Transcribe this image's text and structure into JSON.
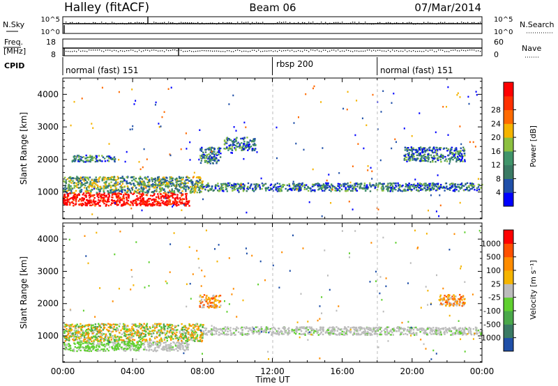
{
  "header": {
    "station": "Halley (fitACF)",
    "beam": "Beam 06",
    "date": "07/Mar/2014"
  },
  "chart_data": [
    {
      "type": "line",
      "panel": "noise",
      "left_label": "N.Sky",
      "right_label": "N.Search",
      "left_ticks": [
        "10^5",
        "10^0"
      ],
      "right_ticks": [
        "10^5",
        "10^0"
      ]
    },
    {
      "type": "line",
      "panel": "frequency",
      "left_label_1": "Freq.",
      "left_label_2": "[MHz]",
      "right_label": "Nave",
      "left_ticks": [
        "18",
        "8"
      ],
      "right_ticks": [
        "60",
        "0"
      ]
    },
    {
      "type": "table",
      "panel": "cpid",
      "label": "CPID",
      "segments": [
        {
          "name": "normal (fast) 151",
          "start_h": 0,
          "end_h": 12
        },
        {
          "name": "rbsp 200",
          "start_h": 12,
          "end_h": 18
        },
        {
          "name": "normal (fast) 151",
          "start_h": 18,
          "end_h": 24
        }
      ]
    },
    {
      "type": "heatmap",
      "panel": "power",
      "ylabel": "Slant Range [km]",
      "yticks": [
        "1000",
        "2000",
        "3000",
        "4000"
      ],
      "ylim": [
        180,
        4500
      ],
      "colorbar_label": "Power [dB]",
      "colorbar_ticks": [
        "4",
        "8",
        "12",
        "16",
        "20",
        "24",
        "28"
      ],
      "colors": [
        "#0000ff",
        "#1f4fa8",
        "#3a7a64",
        "#40946a",
        "#8cc040",
        "#f5b400",
        "#ff6a00",
        "#ff3000",
        "#ff0000"
      ],
      "bands": [
        {
          "t0": 0.0,
          "t1": 7.2,
          "r0": 600,
          "r1": 1000,
          "level": "high"
        },
        {
          "t0": 0.0,
          "t1": 8.0,
          "r0": 1000,
          "r1": 1500,
          "level": "medium"
        },
        {
          "t0": 8.0,
          "t1": 24.0,
          "r0": 1050,
          "r1": 1300,
          "level": "low"
        },
        {
          "t0": 0.5,
          "t1": 3.0,
          "r0": 1950,
          "r1": 2150,
          "level": "low"
        },
        {
          "t0": 7.8,
          "t1": 9.0,
          "r0": 1900,
          "r1": 2400,
          "level": "low"
        },
        {
          "t0": 9.2,
          "t1": 11.0,
          "r0": 2300,
          "r1": 2700,
          "level": "low"
        },
        {
          "t0": 19.5,
          "t1": 23.0,
          "r0": 1950,
          "r1": 2400,
          "level": "low"
        }
      ]
    },
    {
      "type": "heatmap",
      "panel": "velocity",
      "ylabel": "Slant Range [km]",
      "yticks": [
        "1000",
        "2000",
        "3000",
        "4000"
      ],
      "ylim": [
        180,
        4500
      ],
      "xlabel": "Time UT",
      "xticks": [
        "00:00",
        "04:00",
        "08:00",
        "12:00",
        "16:00",
        "20:00",
        "00:00"
      ],
      "xlim": [
        0,
        24
      ],
      "colorbar_label": "Velocity [m s⁻¹]",
      "colorbar_ticks": [
        "1000",
        "500",
        "100",
        "25",
        "-25",
        "-100",
        "-500",
        "-1000"
      ],
      "colors": [
        "#1f4fa8",
        "#3a7a64",
        "#4aa84a",
        "#60d030",
        "#bcbcbc",
        "#f5b400",
        "#ff8c00",
        "#ff5000",
        "#ff0000"
      ],
      "bands": [
        {
          "t0": 0.0,
          "t1": 4.5,
          "r0": 550,
          "r1": 850,
          "level": "green"
        },
        {
          "t0": 4.5,
          "t1": 7.2,
          "r0": 550,
          "r1": 850,
          "level": "grey"
        },
        {
          "t0": 0.0,
          "t1": 8.0,
          "r0": 850,
          "r1": 1400,
          "level": "mixed"
        },
        {
          "t0": 8.0,
          "t1": 24.0,
          "r0": 1050,
          "r1": 1300,
          "level": "grey"
        },
        {
          "t0": 7.8,
          "t1": 9.0,
          "r0": 1900,
          "r1": 2300,
          "level": "warm"
        },
        {
          "t0": 21.5,
          "t1": 23.0,
          "r0": 1950,
          "r1": 2300,
          "level": "warm"
        }
      ]
    }
  ]
}
